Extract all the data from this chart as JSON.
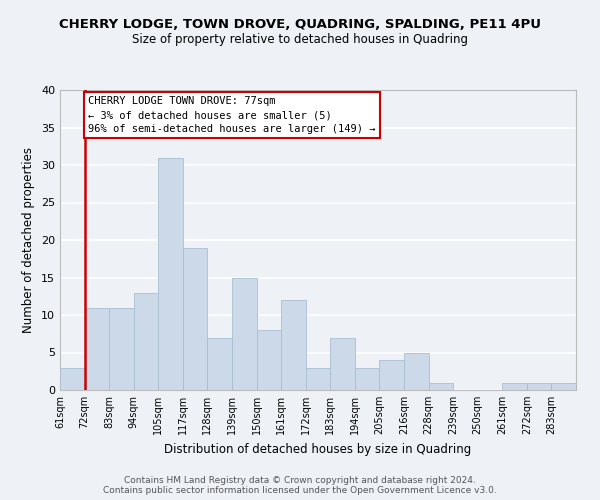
{
  "title": "CHERRY LODGE, TOWN DROVE, QUADRING, SPALDING, PE11 4PU",
  "subtitle": "Size of property relative to detached houses in Quadring",
  "xlabel": "Distribution of detached houses by size in Quadring",
  "ylabel": "Number of detached properties",
  "footer_line1": "Contains HM Land Registry data © Crown copyright and database right 2024.",
  "footer_line2": "Contains public sector information licensed under the Open Government Licence v3.0.",
  "bin_labels": [
    "61sqm",
    "72sqm",
    "83sqm",
    "94sqm",
    "105sqm",
    "117sqm",
    "128sqm",
    "139sqm",
    "150sqm",
    "161sqm",
    "172sqm",
    "183sqm",
    "194sqm",
    "205sqm",
    "216sqm",
    "228sqm",
    "239sqm",
    "250sqm",
    "261sqm",
    "272sqm",
    "283sqm"
  ],
  "bar_values": [
    3,
    11,
    11,
    13,
    31,
    19,
    7,
    15,
    8,
    12,
    3,
    7,
    3,
    4,
    5,
    1,
    0,
    0,
    1,
    1,
    1
  ],
  "bar_color": "#ccd9e8",
  "bar_edge_color": "#a8bfd0",
  "annotation_title": "CHERRY LODGE TOWN DROVE: 77sqm",
  "annotation_line1": "← 3% of detached houses are smaller (5)",
  "annotation_line2": "96% of semi-detached houses are larger (149) →",
  "annotation_box_facecolor": "#ffffff",
  "annotation_box_edgecolor": "#cc0000",
  "marker_color": "#cc0000",
  "ylim": [
    0,
    40
  ],
  "yticks": [
    0,
    5,
    10,
    15,
    20,
    25,
    30,
    35,
    40
  ],
  "background_color": "#eef2f7",
  "grid_color": "#ffffff",
  "title_fontsize": 9.5,
  "subtitle_fontsize": 8.5
}
